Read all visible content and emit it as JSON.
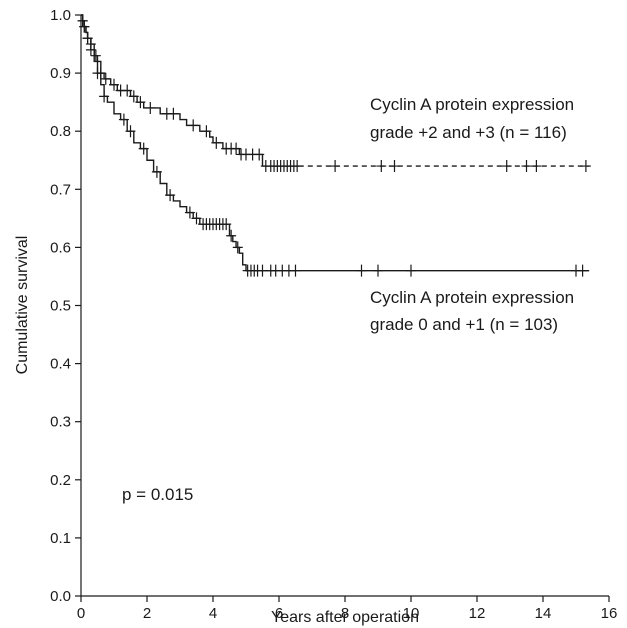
{
  "chart_data": {
    "type": "line",
    "chart_kind": "kaplan-meier survival curve",
    "xlabel": "Years after operation",
    "ylabel": "Cumulative survival",
    "xlim": [
      0,
      16
    ],
    "ylim": [
      0,
      1
    ],
    "x_ticks": [
      "0",
      "2",
      "4",
      "6",
      "8",
      "10",
      "12",
      "14",
      "16"
    ],
    "y_ticks": [
      "0.0",
      "0.1",
      "0.2",
      "0.3",
      "0.4",
      "0.5",
      "0.6",
      "0.7",
      "0.8",
      "0.9",
      "1.0"
    ],
    "grid": false,
    "p_value_text": "p = 0.015",
    "series": [
      {
        "name": "Cyclin A protein expression grade +2 and +3 (n = 116)",
        "label_lines": [
          "Cyclin A protein expression",
          "grade +2 and +3 (n = 116)"
        ],
        "line_style": "dashed-after-last-event",
        "color": "#1a1a1a",
        "steps": [
          [
            0,
            1.0
          ],
          [
            0.05,
            0.99
          ],
          [
            0.1,
            0.98
          ],
          [
            0.15,
            0.97
          ],
          [
            0.2,
            0.96
          ],
          [
            0.3,
            0.95
          ],
          [
            0.4,
            0.93
          ],
          [
            0.5,
            0.92
          ],
          [
            0.6,
            0.9
          ],
          [
            0.7,
            0.89
          ],
          [
            0.9,
            0.88
          ],
          [
            1.1,
            0.87
          ],
          [
            1.5,
            0.86
          ],
          [
            1.7,
            0.85
          ],
          [
            1.9,
            0.84
          ],
          [
            2.4,
            0.83
          ],
          [
            3.0,
            0.82
          ],
          [
            3.2,
            0.81
          ],
          [
            3.6,
            0.8
          ],
          [
            3.9,
            0.79
          ],
          [
            4.0,
            0.78
          ],
          [
            4.3,
            0.77
          ],
          [
            4.8,
            0.76
          ],
          [
            5.5,
            0.74
          ],
          [
            15.4,
            0.74
          ]
        ],
        "solid_until": 6.6,
        "censored": [
          0.05,
          0.1,
          0.2,
          0.3,
          0.45,
          0.6,
          0.75,
          1.0,
          1.2,
          1.4,
          1.6,
          1.8,
          2.1,
          2.6,
          2.8,
          3.4,
          3.8,
          4.1,
          4.4,
          4.55,
          4.7,
          4.85,
          5.0,
          5.2,
          5.4,
          5.6,
          5.75,
          5.85,
          5.95,
          6.05,
          6.15,
          6.25,
          6.35,
          6.45,
          6.55,
          7.7,
          9.1,
          9.5,
          12.9,
          13.5,
          13.8,
          15.3
        ]
      },
      {
        "name": "Cyclin A protein expression grade 0 and +1 (n = 103)",
        "label_lines": [
          "Cyclin A protein expression",
          "grade 0 and +1 (n = 103)"
        ],
        "line_style": "solid",
        "color": "#1a1a1a",
        "steps": [
          [
            0,
            1.0
          ],
          [
            0.05,
            0.99
          ],
          [
            0.1,
            0.98
          ],
          [
            0.15,
            0.97
          ],
          [
            0.2,
            0.96
          ],
          [
            0.3,
            0.94
          ],
          [
            0.4,
            0.92
          ],
          [
            0.5,
            0.9
          ],
          [
            0.6,
            0.88
          ],
          [
            0.7,
            0.86
          ],
          [
            0.8,
            0.85
          ],
          [
            1.0,
            0.83
          ],
          [
            1.2,
            0.82
          ],
          [
            1.4,
            0.8
          ],
          [
            1.6,
            0.78
          ],
          [
            1.8,
            0.77
          ],
          [
            2.0,
            0.75
          ],
          [
            2.2,
            0.73
          ],
          [
            2.4,
            0.71
          ],
          [
            2.6,
            0.69
          ],
          [
            2.8,
            0.68
          ],
          [
            3.0,
            0.67
          ],
          [
            3.2,
            0.66
          ],
          [
            3.4,
            0.65
          ],
          [
            3.6,
            0.64
          ],
          [
            4.5,
            0.62
          ],
          [
            4.6,
            0.61
          ],
          [
            4.7,
            0.6
          ],
          [
            4.8,
            0.59
          ],
          [
            4.9,
            0.57
          ],
          [
            5.0,
            0.56
          ],
          [
            15.4,
            0.56
          ]
        ],
        "censored": [
          0.05,
          0.1,
          0.2,
          0.3,
          0.5,
          0.7,
          1.3,
          1.5,
          1.9,
          2.3,
          2.7,
          3.3,
          3.5,
          3.7,
          3.8,
          3.9,
          4.0,
          4.1,
          4.2,
          4.3,
          4.4,
          4.55,
          4.75,
          5.05,
          5.15,
          5.25,
          5.35,
          5.5,
          5.75,
          5.9,
          6.1,
          6.3,
          6.5,
          8.5,
          9.0,
          10.0,
          15.0,
          15.2
        ]
      }
    ]
  }
}
